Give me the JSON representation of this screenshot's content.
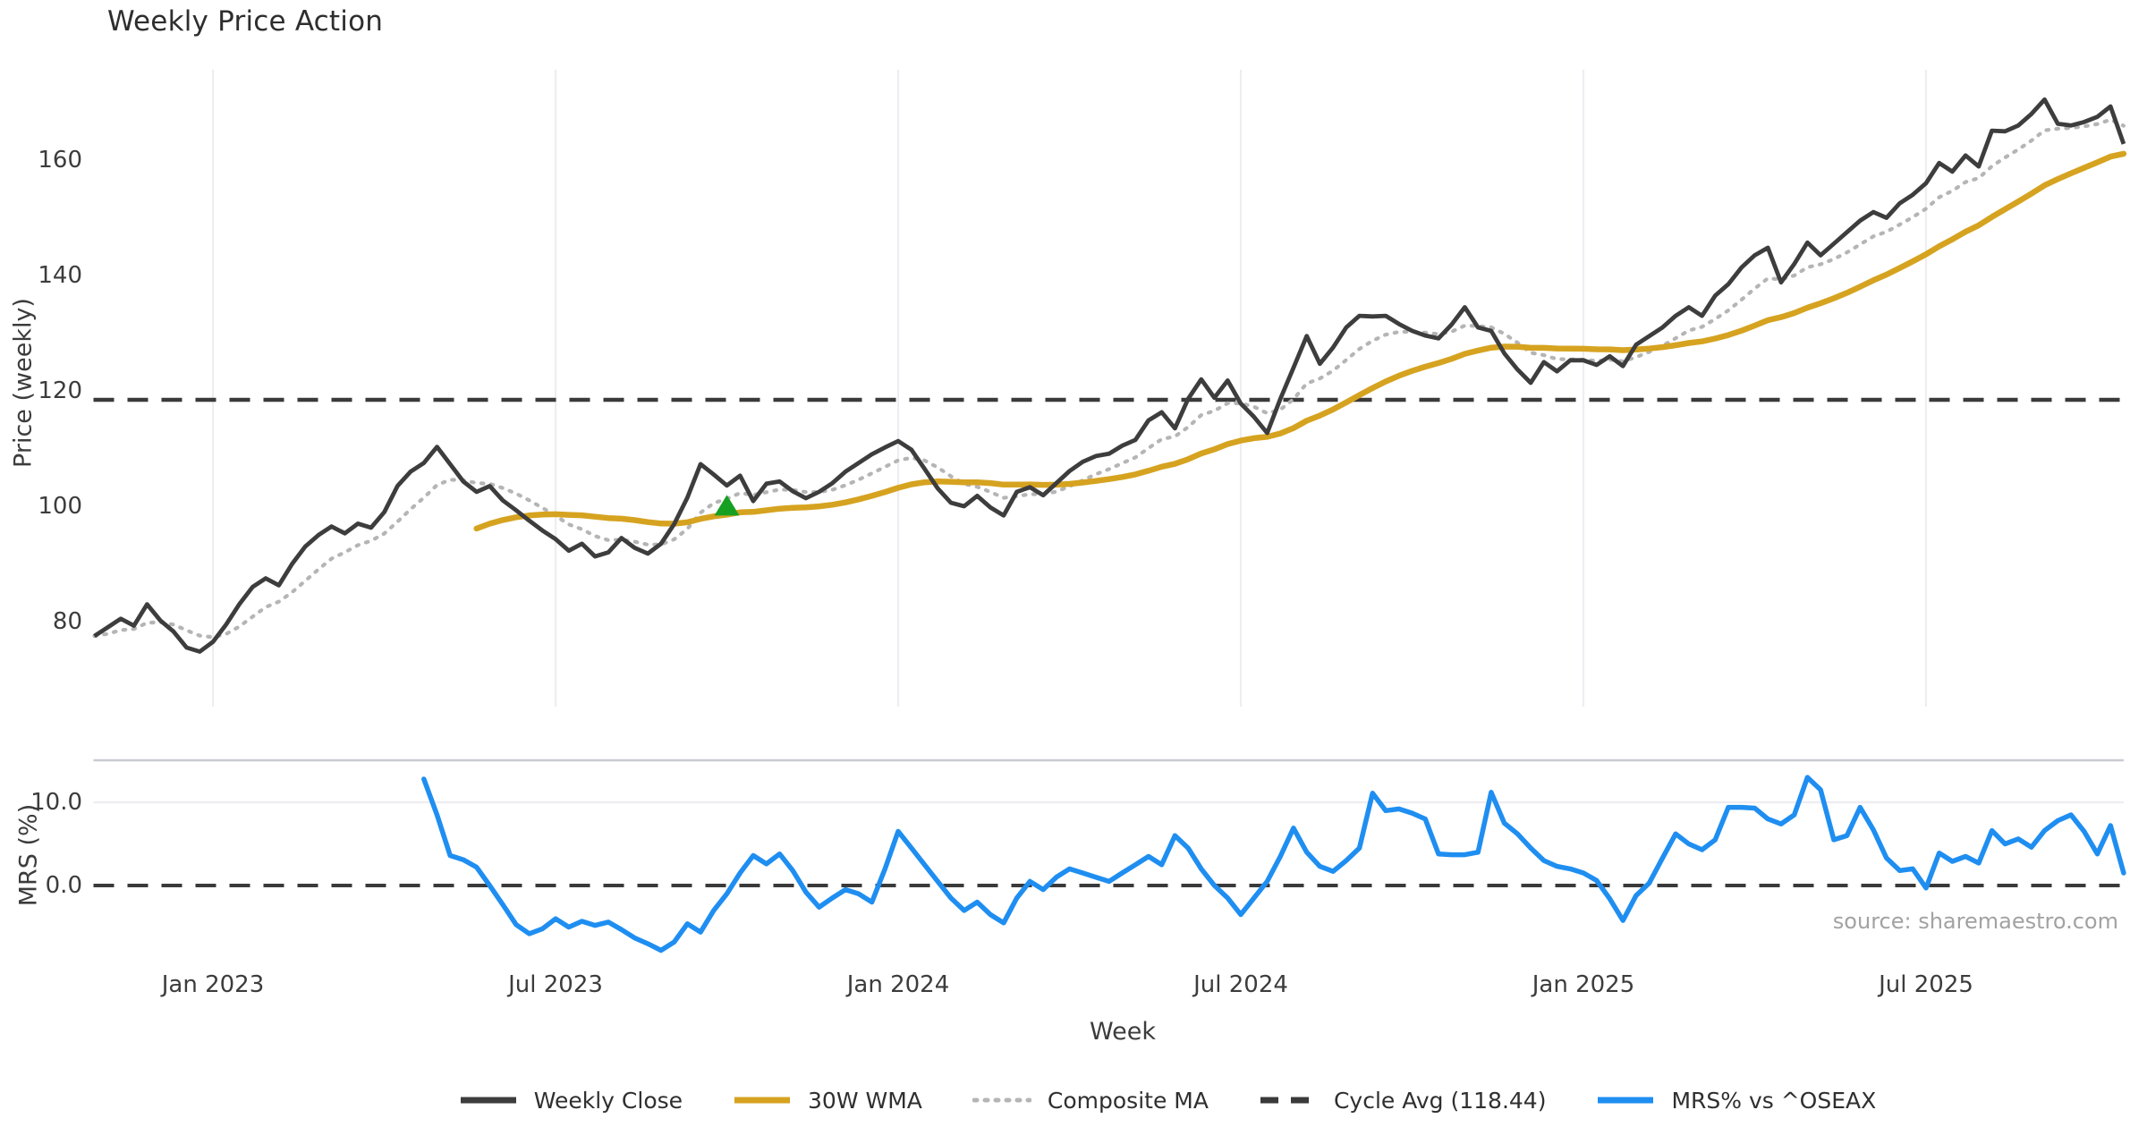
{
  "title": "Weekly Price Action",
  "source": "source: sharemaestro.com",
  "axes": {
    "price_label": "Price (weekly)",
    "mrs_label": "MRS (%)",
    "x_label": "Week"
  },
  "colors": {
    "weekly_close": "#3d3d3d",
    "wma": "#d6a320",
    "composite": "#b5b5b5",
    "cycle_avg": "#3a3a3a",
    "mrs": "#1f8ef1",
    "marker_green": "#16a022",
    "gridline": "#ededf2",
    "panel_spine": "#c9cbd1",
    "tick_text": "#3c3c3c",
    "source_text": "#a2a2a2"
  },
  "chart_data": {
    "type": "line",
    "title": "Weekly Price Action",
    "layout": {
      "panels": 2,
      "grid": "vertical-date-gridlines",
      "legend_position": "bottom-center"
    },
    "x_axis": {
      "label": "Week",
      "tick_labels": [
        "Jan 2023",
        "Jul 2023",
        "Jan 2024",
        "Jul 2024",
        "Jan 2025",
        "Jul 2025"
      ],
      "tick_week_indices": [
        9,
        35,
        61,
        87,
        113,
        139
      ],
      "weeks_total": 155,
      "start_date_approx": "2022-10-31",
      "end_date_approx": "2025-10-13"
    },
    "price_axis": {
      "label": "Price (weekly)",
      "ticks": [
        80,
        100,
        120,
        140,
        160
      ],
      "range": [
        65,
        176
      ]
    },
    "mrs_axis": {
      "label": "MRS (%)",
      "ticks": [
        0.0,
        10.0
      ],
      "tick_labels": [
        "0.0",
        "10.0"
      ],
      "range": [
        -9,
        15
      ]
    },
    "cycle_avg_value": 118.44,
    "series": [
      {
        "name": "Weekly Close",
        "style": "solid",
        "color": "#3d3d3d",
        "start_week": 0,
        "values": [
          77.5,
          79,
          80.5,
          79.3,
          83,
          80.2,
          78.3,
          75.5,
          74.8,
          76.5,
          79.5,
          83,
          86,
          87.5,
          86.3,
          90,
          93,
          95,
          96.5,
          95.3,
          97,
          96.3,
          99,
          103.5,
          106,
          107.5,
          110.3,
          107.3,
          104.3,
          102.5,
          103.5,
          101,
          99.3,
          97.5,
          95.8,
          94.3,
          92.3,
          93.5,
          91.3,
          92,
          94.5,
          92.8,
          91.8,
          93.5,
          96.9,
          101.5,
          107.3,
          105.5,
          103.6,
          105.3,
          100.9,
          103.9,
          104.3,
          102.6,
          101.4,
          102.5,
          104,
          106,
          107.5,
          109,
          110.2,
          111.3,
          109.8,
          106.5,
          103.1,
          100.6,
          100,
          101.8,
          99.8,
          98.4,
          102.5,
          103.3,
          101.9,
          104,
          106.1,
          107.7,
          108.7,
          109.1,
          110.5,
          111.5,
          114.9,
          116.3,
          113.5,
          118.6,
          122,
          118.8,
          121.8,
          117.8,
          115.5,
          112.7,
          118.6,
          124,
          129.5,
          124.7,
          127.5,
          131,
          133,
          132.9,
          133,
          131.6,
          130.4,
          129.6,
          129.1,
          131.5,
          134.5,
          131,
          130.4,
          126.5,
          123.7,
          121.4,
          125,
          123.4,
          125.3,
          125.3,
          124.5,
          126,
          124.3,
          128,
          129.5,
          131,
          133,
          134.5,
          133,
          136.5,
          138.5,
          141.4,
          143.5,
          144.8,
          138.8,
          142,
          145.7,
          143.5,
          145.5,
          147.5,
          149.5,
          151,
          150,
          152.5,
          154,
          156,
          159.5,
          158,
          160.8,
          158.9,
          165.1,
          165,
          166,
          168,
          170.5,
          166.3,
          166,
          166.6,
          167.5,
          169.3,
          162.8
        ]
      },
      {
        "name": "30W WMA",
        "style": "solid",
        "color": "#d6a320",
        "derived": "30-week linearly weighted moving average of Weekly Close, plotted from week 29"
      },
      {
        "name": "Composite MA",
        "style": "dotted",
        "color": "#b5b5b5",
        "derived": "exponential smoothing (alpha 0.25) of Weekly Close, plotted from week 0"
      },
      {
        "name": "Cycle Avg (118.44)",
        "style": "dashed",
        "color": "#3a3a3a",
        "value": 118.44
      },
      {
        "name": "MRS% vs ^OSEAX",
        "style": "solid",
        "color": "#1f8ef1",
        "start_week": 25,
        "values": [
          12.8,
          8.5,
          3.6,
          3.1,
          2.2,
          0,
          -2.3,
          -4.7,
          -5.8,
          -5.2,
          -4,
          -5,
          -4.3,
          -4.8,
          -4.4,
          -5.3,
          -6.3,
          -7,
          -7.8,
          -6.8,
          -4.6,
          -5.6,
          -3,
          -1,
          1.5,
          3.6,
          2.6,
          3.8,
          1.8,
          -0.8,
          -2.6,
          -1.5,
          -0.5,
          -1,
          -2,
          2,
          6.5,
          4.5,
          2.5,
          0.5,
          -1.5,
          -3,
          -2,
          -3.5,
          -4.5,
          -1.5,
          0.5,
          -0.5,
          1,
          2,
          1.5,
          1,
          0.5,
          1.5,
          2.5,
          3.5,
          2.5,
          6,
          4.5,
          2,
          0,
          -1.5,
          -3.5,
          -1.5,
          0.5,
          3.5,
          6.9,
          4,
          2.3,
          1.7,
          3,
          4.5,
          11.1,
          9,
          9.2,
          8.7,
          8,
          3.8,
          3.7,
          3.7,
          4,
          11.2,
          7.5,
          6.2,
          4.5,
          3,
          2.3,
          2,
          1.5,
          0.6,
          -1.6,
          -4.2,
          -1.2,
          0.3,
          3.3,
          6.2,
          5,
          4.3,
          5.5,
          9.4,
          9.4,
          9.3,
          8,
          7.4,
          8.5,
          13,
          11.5,
          5.5,
          6,
          9.4,
          6.7,
          3.3,
          1.8,
          2,
          -0.3,
          3.9,
          2.9,
          3.5,
          2.7,
          6.6,
          5,
          5.6,
          4.6,
          6.6,
          7.8,
          8.5,
          6.5,
          3.8,
          7.2,
          1.5
        ]
      }
    ],
    "marker": {
      "type": "triangle-up",
      "meaning": "buy-signal marker on 30W WMA",
      "color": "#16a022",
      "week": 48
    }
  },
  "legend": {
    "items": [
      {
        "label": "Weekly Close",
        "style": "solid",
        "color": "#3d3d3d"
      },
      {
        "label": "30W WMA",
        "style": "solid",
        "color": "#d6a320"
      },
      {
        "label": "Composite MA",
        "style": "dotted",
        "color": "#b5b5b5"
      },
      {
        "label": "Cycle Avg (118.44)",
        "style": "dashed",
        "color": "#3a3a3a"
      },
      {
        "label": "MRS% vs ^OSEAX",
        "style": "solid",
        "color": "#1f8ef1"
      }
    ]
  }
}
